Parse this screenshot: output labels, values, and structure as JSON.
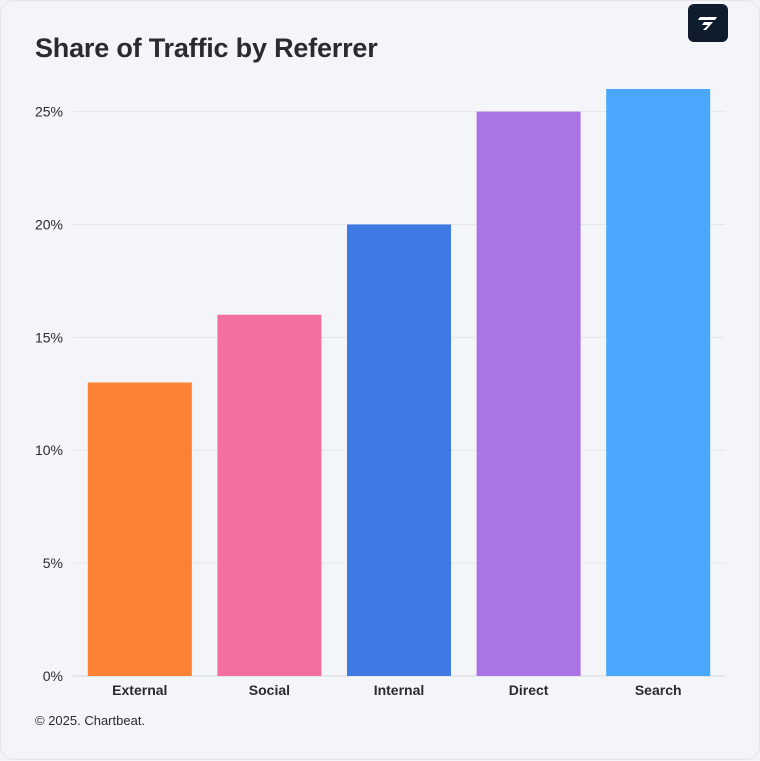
{
  "header": {
    "title": "Share of Traffic by Referrer",
    "logo_icon": "chartbeat-logo-icon"
  },
  "footer": {
    "copyright": "© 2025. Chartbeat."
  },
  "chart_data": {
    "type": "bar",
    "title": "Share of Traffic by Referrer",
    "xlabel": "",
    "ylabel": "",
    "categories": [
      "External",
      "Social",
      "Internal",
      "Direct",
      "Search"
    ],
    "values": [
      13,
      16,
      20,
      25,
      26
    ],
    "colors": [
      "#fb8232",
      "#f36f9f",
      "#3f7ae4",
      "#a974e3",
      "#49a8fd"
    ],
    "ylim": [
      0,
      26
    ],
    "yticks": [
      0,
      5,
      10,
      15,
      20,
      25
    ],
    "ytick_labels": [
      "0%",
      "5%",
      "10%",
      "15%",
      "20%",
      "25%"
    ],
    "grid": true,
    "legend": "none"
  }
}
